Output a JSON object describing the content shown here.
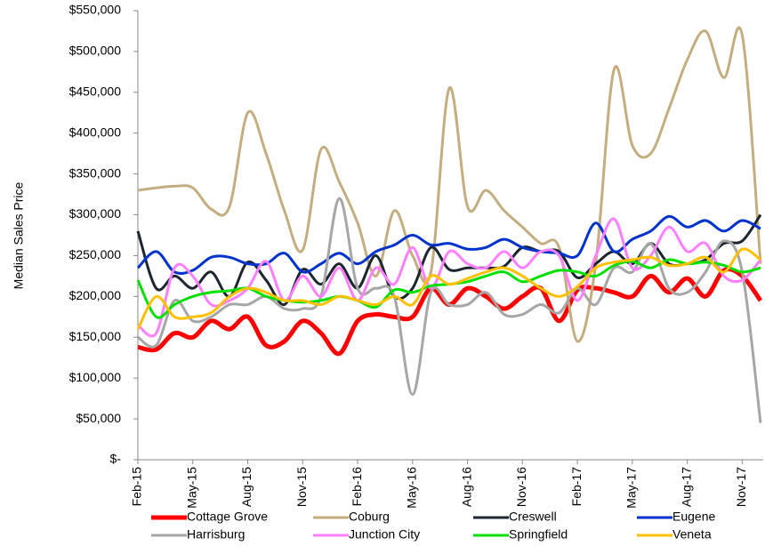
{
  "chart_data": {
    "type": "line",
    "y_label": "Median Sales Price",
    "categories": [
      "Feb-15",
      null,
      null,
      "May-15",
      null,
      null,
      "Aug-15",
      null,
      null,
      "Nov-15",
      null,
      null,
      "Feb-16",
      null,
      null,
      "May-16",
      null,
      null,
      "Aug-16",
      null,
      null,
      "Nov-16",
      null,
      null,
      "Feb-17",
      null,
      null,
      "May-17",
      null,
      null,
      "Aug-17",
      null,
      null,
      "Nov-17",
      null
    ],
    "ylim": [
      0,
      550000
    ],
    "yticks": [
      {
        "value": 0,
        "label": "$-"
      },
      {
        "value": 50000,
        "label": "$50,000"
      },
      {
        "value": 100000,
        "label": "$100,000"
      },
      {
        "value": 150000,
        "label": "$150,000"
      },
      {
        "value": 200000,
        "label": "$200,000"
      },
      {
        "value": 250000,
        "label": "$250,000"
      },
      {
        "value": 300000,
        "label": "$300,000"
      },
      {
        "value": 350000,
        "label": "$350,000"
      },
      {
        "value": 400000,
        "label": "$400,000"
      },
      {
        "value": 450000,
        "label": "$450,000"
      },
      {
        "value": 500000,
        "label": "$500,000"
      },
      {
        "value": 550000,
        "label": "$550,000"
      }
    ],
    "grid": false,
    "legend": "bottom",
    "series": [
      {
        "name": "Cottage Grove",
        "color": "#ff0000",
        "values": [
          138000,
          135000,
          155000,
          150000,
          170000,
          160000,
          175000,
          140000,
          145000,
          170000,
          155000,
          130000,
          170000,
          178000,
          175000,
          175000,
          210000,
          190000,
          210000,
          200000,
          185000,
          200000,
          210000,
          170000,
          208000,
          210000,
          205000,
          200000,
          225000,
          205000,
          222000,
          200000,
          232000,
          225000,
          195000
        ]
      },
      {
        "name": "Coburg",
        "color": "#c4ad7f",
        "values": [
          330000,
          333000,
          335000,
          333000,
          307000,
          310000,
          425000,
          375000,
          305000,
          257000,
          380000,
          340000,
          290000,
          225000,
          305000,
          250000,
          230000,
          455000,
          310000,
          330000,
          305000,
          285000,
          265000,
          260000,
          145000,
          240000,
          478000,
          385000,
          375000,
          430000,
          490000,
          525000,
          468000,
          520000,
          240000
        ]
      },
      {
        "name": "Creswell",
        "color": "#1c2630",
        "values": [
          280000,
          210000,
          225000,
          210000,
          230000,
          200000,
          242000,
          220000,
          190000,
          233000,
          215000,
          240000,
          210000,
          250000,
          200000,
          210000,
          260000,
          233000,
          235000,
          235000,
          237000,
          260000,
          255000,
          255000,
          223000,
          240000,
          255000,
          240000,
          265000,
          240000,
          240000,
          245000,
          265000,
          268000,
          300000
        ]
      },
      {
        "name": "Eugene",
        "color": "#0033cc",
        "values": [
          235000,
          255000,
          230000,
          232000,
          248000,
          248000,
          240000,
          240000,
          253000,
          230000,
          240000,
          253000,
          240000,
          255000,
          263000,
          275000,
          263000,
          265000,
          258000,
          260000,
          270000,
          260000,
          255000,
          253000,
          250000,
          290000,
          255000,
          270000,
          280000,
          298000,
          285000,
          293000,
          280000,
          293000,
          283000
        ]
      },
      {
        "name": "Harrisburg",
        "color": "#a6a6a6",
        "values": [
          150000,
          140000,
          195000,
          170000,
          175000,
          190000,
          190000,
          200000,
          185000,
          185000,
          200000,
          320000,
          210000,
          210000,
          200000,
          80000,
          205000,
          190000,
          190000,
          205000,
          178000,
          178000,
          190000,
          180000,
          210000,
          190000,
          235000,
          230000,
          265000,
          210000,
          205000,
          230000,
          268000,
          230000,
          45000
        ]
      },
      {
        "name": "Junction City",
        "color": "#ff80ff",
        "values": [
          165000,
          155000,
          235000,
          225000,
          190000,
          195000,
          210000,
          243000,
          195000,
          225000,
          200000,
          235000,
          195000,
          235000,
          215000,
          260000,
          210000,
          255000,
          240000,
          235000,
          255000,
          235000,
          255000,
          250000,
          195000,
          250000,
          295000,
          235000,
          250000,
          285000,
          255000,
          265000,
          225000,
          220000,
          245000
        ]
      },
      {
        "name": "Springfield",
        "color": "#00e000",
        "values": [
          220000,
          175000,
          190000,
          200000,
          205000,
          207000,
          210000,
          200000,
          195000,
          193000,
          195000,
          200000,
          195000,
          187000,
          208000,
          205000,
          213000,
          215000,
          218000,
          225000,
          230000,
          218000,
          225000,
          232000,
          230000,
          225000,
          238000,
          243000,
          235000,
          245000,
          240000,
          242000,
          238000,
          230000,
          235000
        ]
      },
      {
        "name": "Veneta",
        "color": "#ffc000",
        "values": [
          160000,
          200000,
          175000,
          175000,
          180000,
          200000,
          210000,
          205000,
          195000,
          195000,
          190000,
          200000,
          195000,
          190000,
          200000,
          190000,
          225000,
          215000,
          222000,
          230000,
          235000,
          225000,
          210000,
          200000,
          212000,
          235000,
          242000,
          245000,
          248000,
          238000,
          240000,
          248000,
          230000,
          258000,
          245000
        ]
      }
    ]
  }
}
